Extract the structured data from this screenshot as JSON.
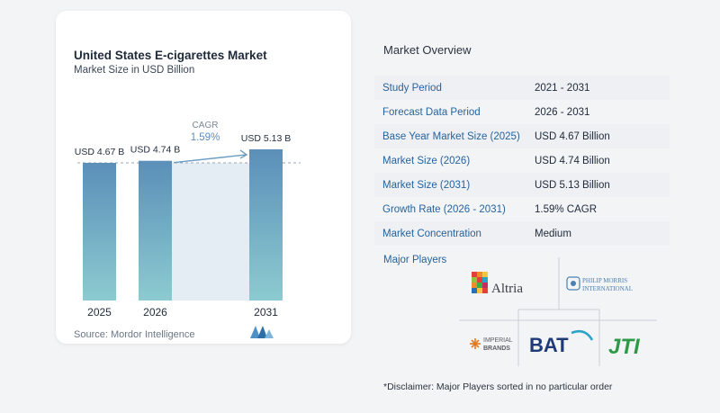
{
  "chart_data": {
    "type": "bar",
    "title": "United States E-cigarettes Market",
    "subtitle": "Market Size in USD Billion",
    "categories": [
      "2025",
      "2026",
      "2031"
    ],
    "values": [
      4.67,
      4.74,
      5.13
    ],
    "value_labels": [
      "USD 4.67 B",
      "USD 4.74 B",
      "USD 5.13 B"
    ],
    "cagr_label": "CAGR",
    "cagr_value": "1.59%",
    "colors": {
      "bar_top": "#5b8fb9",
      "bar_bottom": "#8ccbd0",
      "band": "#e4edf4",
      "arrow": "#6a9cc4"
    }
  },
  "source": "Source: Mordor Intelligence",
  "overview": {
    "title": "Market Overview",
    "rows": [
      {
        "label": "Study Period",
        "value": "2021 - 2031"
      },
      {
        "label": "Forecast Data Period",
        "value": "2026 - 2031"
      },
      {
        "label": "Base Year Market Size (2025)",
        "value": "USD 4.67 Billion"
      },
      {
        "label": "Market Size (2026)",
        "value": "USD 4.74 Billion"
      },
      {
        "label": "Market Size (2031)",
        "value": "USD 5.13 Billion"
      },
      {
        "label": "Growth Rate (2026 - 2031)",
        "value": "1.59% CAGR"
      },
      {
        "label": "Market Concentration",
        "value": "Medium"
      }
    ]
  },
  "players": {
    "title": "Major Players",
    "altria": "Altria",
    "pmi_line1": "PHILIP MORRIS",
    "pmi_line2": "INTERNATIONAL",
    "imperial_line1": "IMPERIAL",
    "imperial_line2": "BRANDS",
    "bat": "BAT",
    "jti": "JTI"
  },
  "disclaimer": "*Disclaimer: Major Players sorted in no particular order"
}
